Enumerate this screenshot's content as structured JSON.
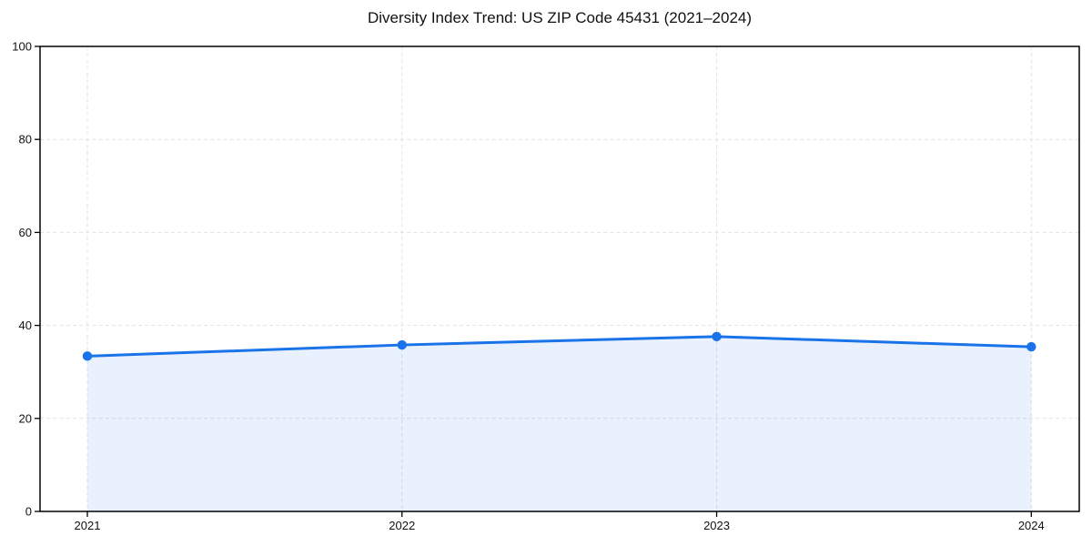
{
  "chart_data": {
    "type": "line",
    "title": "Diversity Index Trend: US ZIP Code 45431 (2021–2024)",
    "categories": [
      "2021",
      "2022",
      "2023",
      "2024"
    ],
    "series": [
      {
        "name": "Diversity Index",
        "values": [
          33.4,
          35.8,
          37.6,
          35.4
        ]
      }
    ],
    "xlabel": "",
    "ylabel": "",
    "ylim": [
      0,
      100
    ],
    "yticks": [
      0,
      20,
      40,
      60,
      80,
      100
    ],
    "grid": "dashed",
    "legend_position": "none",
    "colors": {
      "line": "#1a73e8",
      "marker": "#1a73e8",
      "fill": "#1a73e8",
      "fill_opacity": 0.1,
      "grid": "#e2e2e2",
      "spine": "#000000",
      "text": "#111111"
    },
    "marker": "circle"
  }
}
